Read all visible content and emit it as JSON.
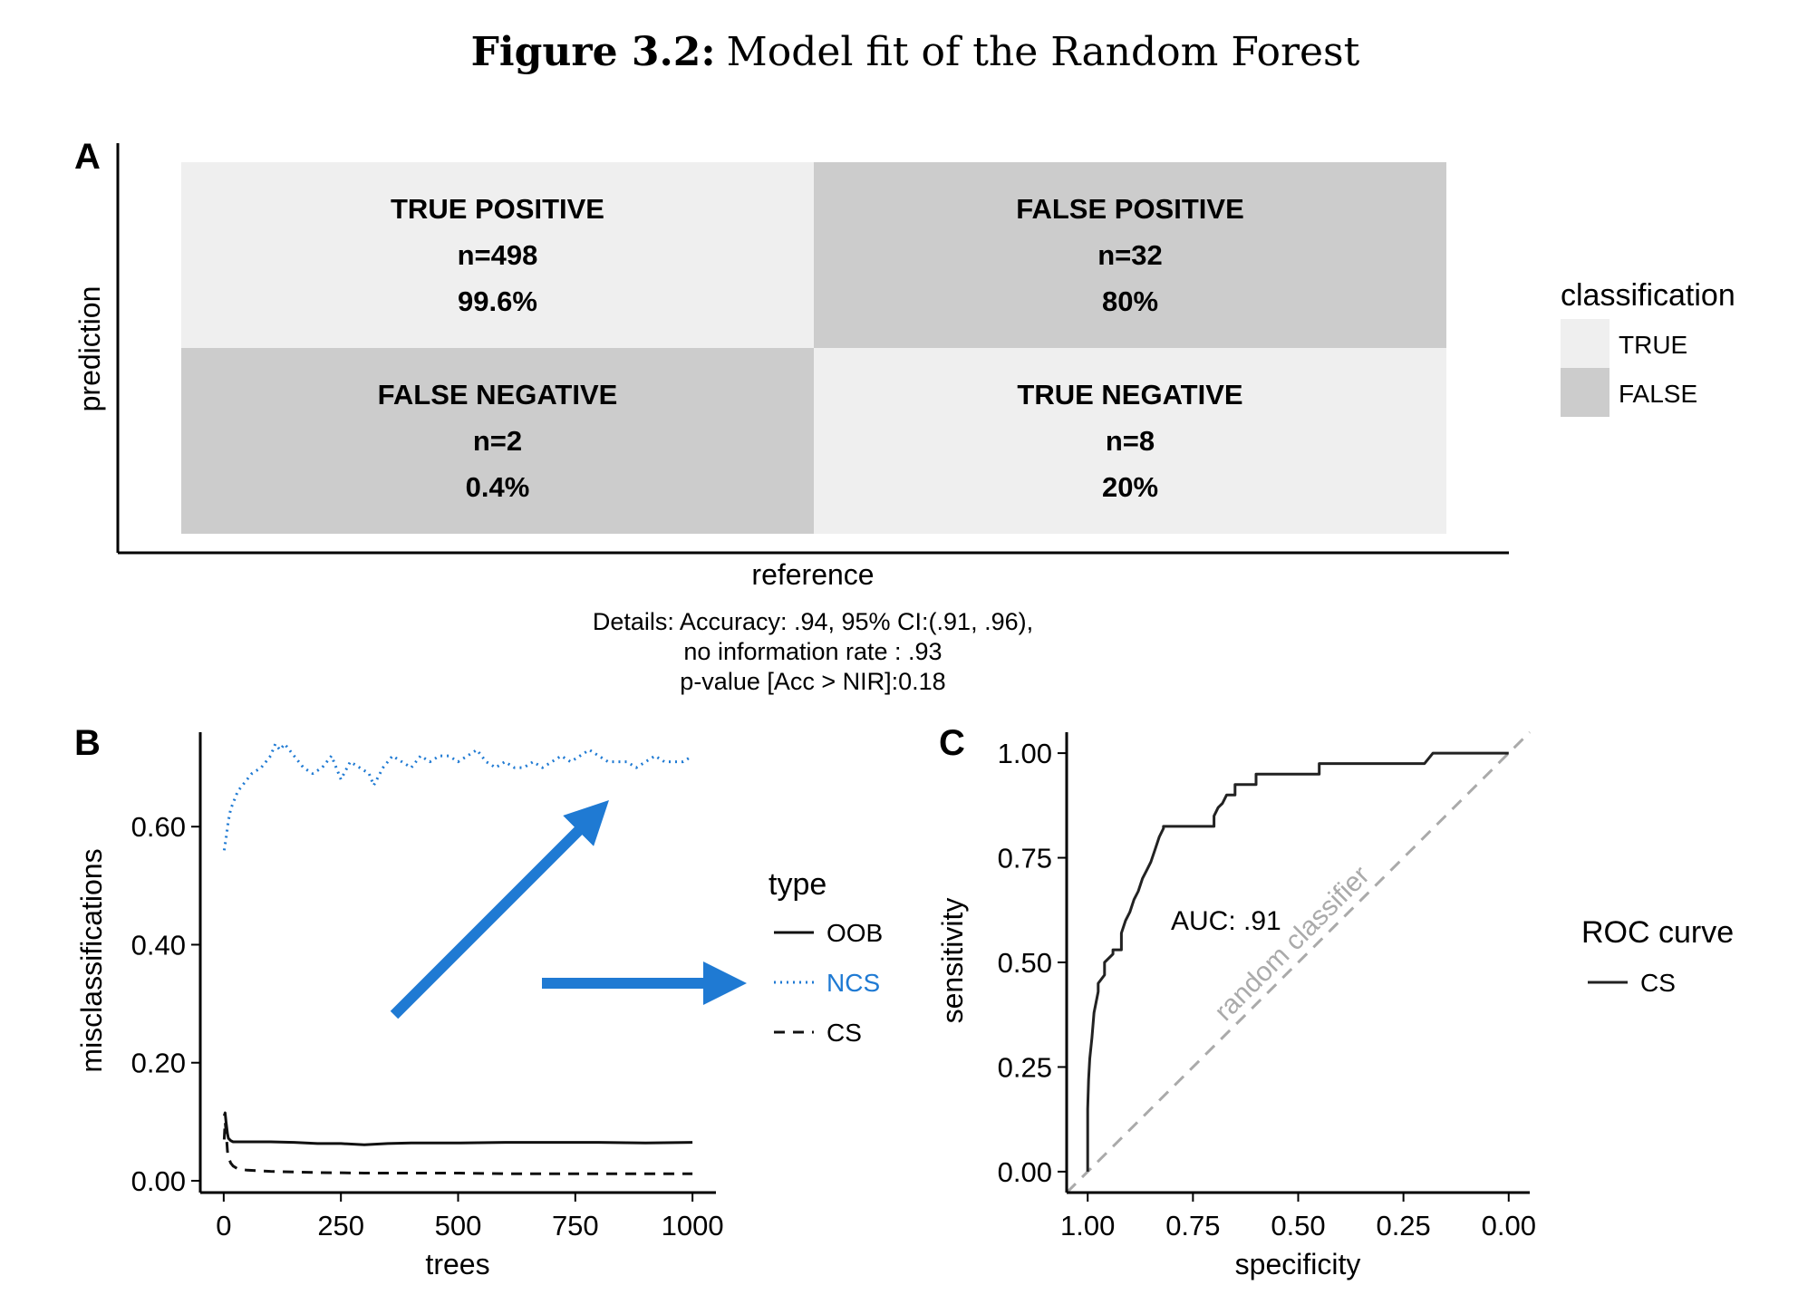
{
  "figure": {
    "label": "Figure 3.2:",
    "title": "Model fit of the Random Forest"
  },
  "chart_data": [
    {
      "type": "heatmap",
      "panel": "A",
      "xlabel": "reference",
      "ylabel": "prediction",
      "legend": {
        "title": "classification",
        "position": "right",
        "entries": [
          {
            "label": "TRUE",
            "color": "#efefef"
          },
          {
            "label": "FALSE",
            "color": "#cccccc"
          }
        ]
      },
      "cells": [
        {
          "row": 0,
          "col": 0,
          "label": "TRUE POSITIVE",
          "n": "n=498",
          "pct": "99.6%",
          "classification": "TRUE"
        },
        {
          "row": 0,
          "col": 1,
          "label": "FALSE POSITIVE",
          "n": "n=32",
          "pct": "80%",
          "classification": "FALSE"
        },
        {
          "row": 1,
          "col": 0,
          "label": "FALSE NEGATIVE",
          "n": "n=2",
          "pct": "0.4%",
          "classification": "FALSE"
        },
        {
          "row": 1,
          "col": 1,
          "label": "TRUE NEGATIVE",
          "n": "n=8",
          "pct": "20%",
          "classification": "TRUE"
        }
      ],
      "details": [
        "Details: Accuracy: .94, 95% CI:(.91, .96),",
        "no information rate : .93",
        "p-value [Acc > NIR]:0.18"
      ]
    },
    {
      "type": "line",
      "panel": "B",
      "xlabel": "trees",
      "ylabel": "misclassifications",
      "xlim": [
        -50,
        1050
      ],
      "ylim": [
        -0.02,
        0.76
      ],
      "xticks": [
        0,
        250,
        500,
        750,
        1000
      ],
      "yticks": [
        0.0,
        0.2,
        0.4,
        0.6
      ],
      "ytick_labels": [
        "0.00",
        "0.20",
        "0.40",
        "0.60"
      ],
      "grid": false,
      "legend": {
        "title": "type",
        "position": "right"
      },
      "series": [
        {
          "name": "OOB",
          "style": "solid",
          "color": "#111111",
          "x": [
            1,
            3,
            5,
            8,
            10,
            15,
            20,
            30,
            50,
            100,
            150,
            200,
            250,
            300,
            350,
            400,
            500,
            600,
            700,
            800,
            900,
            1000
          ],
          "y": [
            0.11,
            0.115,
            0.1,
            0.08,
            0.072,
            0.068,
            0.066,
            0.066,
            0.066,
            0.066,
            0.065,
            0.063,
            0.063,
            0.061,
            0.063,
            0.064,
            0.064,
            0.065,
            0.065,
            0.065,
            0.064,
            0.065
          ]
        },
        {
          "name": "NCS",
          "style": "dotted",
          "color": "#1f7ad3",
          "x": [
            1,
            5,
            10,
            15,
            20,
            30,
            40,
            50,
            60,
            80,
            100,
            110,
            120,
            130,
            150,
            170,
            190,
            210,
            230,
            250,
            270,
            290,
            310,
            320,
            340,
            360,
            380,
            400,
            420,
            440,
            460,
            480,
            500,
            520,
            540,
            560,
            580,
            600,
            620,
            640,
            660,
            680,
            700,
            720,
            740,
            760,
            780,
            800,
            820,
            840,
            860,
            880,
            900,
            920,
            940,
            960,
            980,
            1000
          ],
          "y": [
            0.56,
            0.58,
            0.61,
            0.63,
            0.64,
            0.66,
            0.67,
            0.68,
            0.69,
            0.7,
            0.72,
            0.74,
            0.73,
            0.74,
            0.72,
            0.7,
            0.69,
            0.7,
            0.72,
            0.68,
            0.71,
            0.7,
            0.69,
            0.67,
            0.7,
            0.72,
            0.71,
            0.7,
            0.72,
            0.71,
            0.72,
            0.72,
            0.71,
            0.72,
            0.73,
            0.71,
            0.7,
            0.71,
            0.7,
            0.7,
            0.71,
            0.7,
            0.71,
            0.72,
            0.71,
            0.72,
            0.73,
            0.72,
            0.71,
            0.71,
            0.71,
            0.7,
            0.71,
            0.72,
            0.71,
            0.71,
            0.71,
            0.72
          ]
        },
        {
          "name": "CS",
          "style": "dashed",
          "color": "#111111",
          "x": [
            1,
            3,
            5,
            8,
            10,
            15,
            20,
            30,
            50,
            100,
            200,
            300,
            400,
            500,
            600,
            700,
            800,
            900,
            1000
          ],
          "y": [
            0.07,
            0.1,
            0.085,
            0.05,
            0.04,
            0.03,
            0.025,
            0.02,
            0.018,
            0.016,
            0.014,
            0.013,
            0.013,
            0.013,
            0.012,
            0.012,
            0.012,
            0.012,
            0.012
          ]
        }
      ]
    },
    {
      "type": "line",
      "panel": "C",
      "xlabel": "specificity",
      "ylabel": "sensitivity",
      "x_reversed": true,
      "xlim": [
        1.05,
        -0.05
      ],
      "ylim": [
        -0.05,
        1.05
      ],
      "xticks": [
        1.0,
        0.75,
        0.5,
        0.25,
        0.0
      ],
      "xtick_labels": [
        "1.00",
        "0.75",
        "0.50",
        "0.25",
        "0.00"
      ],
      "yticks": [
        0.0,
        0.25,
        0.5,
        0.75,
        1.0
      ],
      "ytick_labels": [
        "0.00",
        "0.25",
        "0.50",
        "0.75",
        "1.00"
      ],
      "grid": false,
      "annotation": "AUC: .91",
      "diagonal_label": "random classifier",
      "legend": {
        "title": "ROC curve",
        "position": "right"
      },
      "series": [
        {
          "name": "CS",
          "style": "solid",
          "color": "#222222",
          "x": [
            1.0,
            1.0,
            0.998,
            0.995,
            0.99,
            0.985,
            0.975,
            0.975,
            0.96,
            0.96,
            0.94,
            0.94,
            0.92,
            0.92,
            0.91,
            0.9,
            0.89,
            0.88,
            0.87,
            0.86,
            0.85,
            0.84,
            0.83,
            0.82,
            0.82,
            0.7,
            0.7,
            0.69,
            0.68,
            0.67,
            0.65,
            0.65,
            0.6,
            0.6,
            0.45,
            0.45,
            0.2,
            0.18,
            0.0
          ],
          "y": [
            0.0,
            0.15,
            0.22,
            0.27,
            0.32,
            0.38,
            0.43,
            0.45,
            0.47,
            0.5,
            0.52,
            0.53,
            0.53,
            0.57,
            0.6,
            0.62,
            0.65,
            0.67,
            0.7,
            0.72,
            0.74,
            0.77,
            0.8,
            0.82,
            0.825,
            0.825,
            0.85,
            0.87,
            0.88,
            0.9,
            0.9,
            0.925,
            0.925,
            0.95,
            0.95,
            0.975,
            0.975,
            1.0,
            1.0
          ]
        }
      ]
    }
  ]
}
